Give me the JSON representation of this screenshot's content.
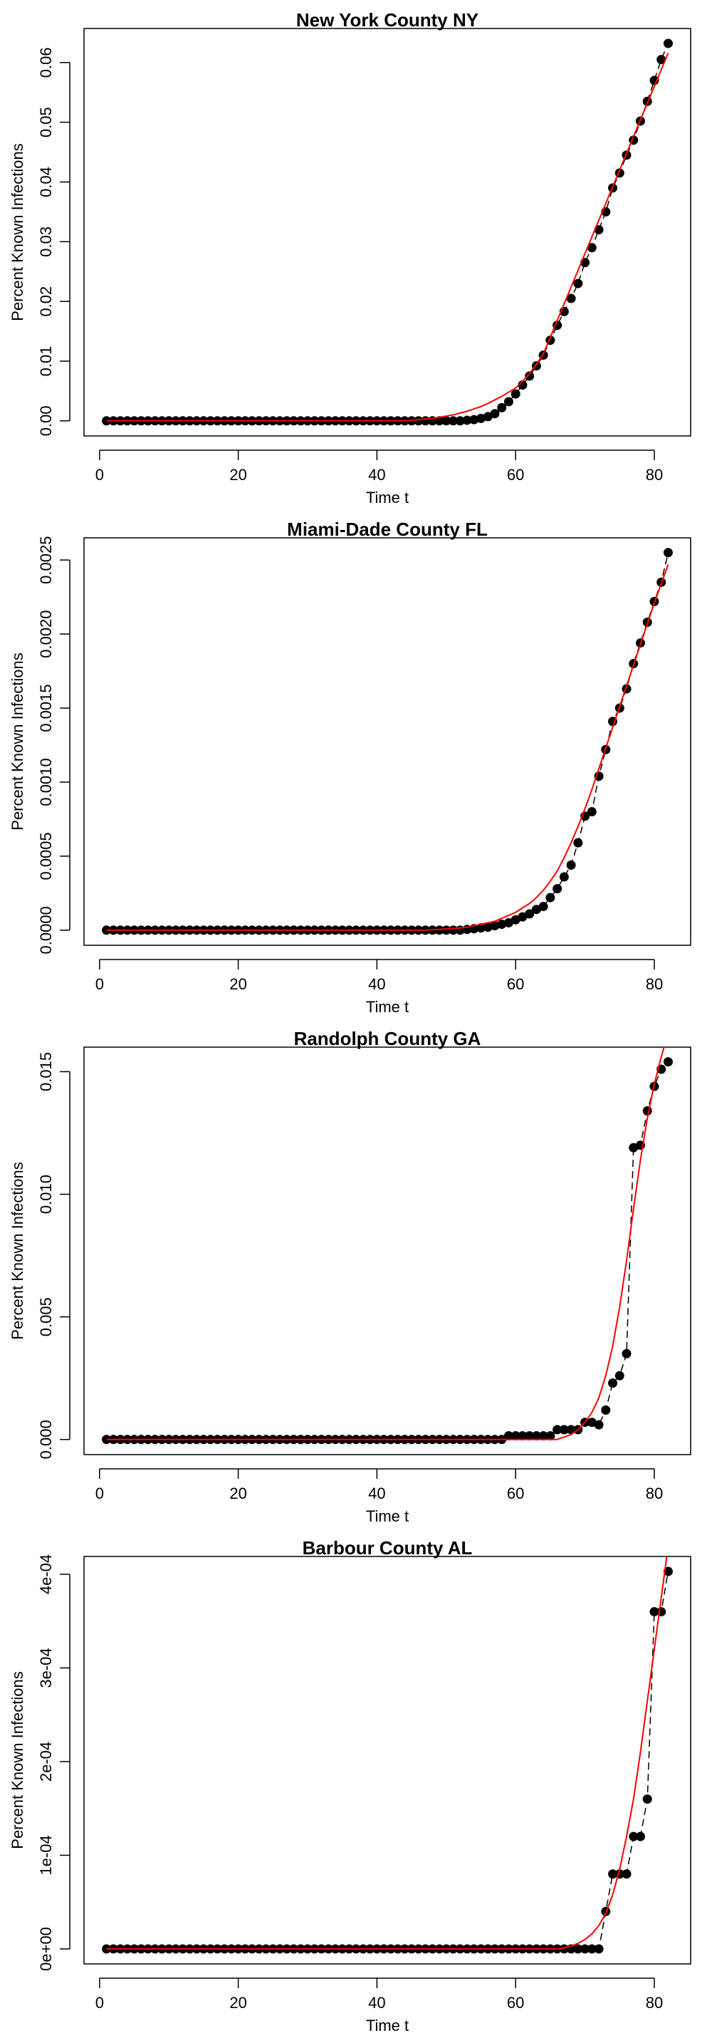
{
  "chart_data": [
    {
      "type": "line",
      "title": "New York County NY",
      "x_label": "Time t",
      "y_label": "Percent Known Infections",
      "x": [
        1,
        2,
        3,
        4,
        5,
        6,
        7,
        8,
        9,
        10,
        11,
        12,
        13,
        14,
        15,
        16,
        17,
        18,
        19,
        20,
        21,
        22,
        23,
        24,
        25,
        26,
        27,
        28,
        29,
        30,
        31,
        32,
        33,
        34,
        35,
        36,
        37,
        38,
        39,
        40,
        41,
        42,
        43,
        44,
        45,
        46,
        47,
        48,
        49,
        50,
        51,
        52,
        53,
        54,
        55,
        56,
        57,
        58,
        59,
        60,
        61,
        62,
        63,
        64,
        65,
        66,
        67,
        68,
        69,
        70,
        71,
        72,
        73,
        74,
        75,
        76,
        77,
        78,
        79,
        80,
        81,
        82
      ],
      "series": [
        {
          "color": "#000000",
          "marker": "point",
          "values": [
            0,
            0,
            0,
            0,
            0,
            0,
            0,
            0,
            0,
            0,
            0,
            0,
            0,
            0,
            0,
            0,
            0,
            0,
            0,
            0,
            0,
            0,
            0,
            0,
            0,
            0,
            0,
            0,
            0,
            0,
            0,
            0,
            0,
            0,
            0,
            0,
            0,
            0,
            0,
            0,
            0,
            0,
            0,
            0,
            0,
            0,
            0,
            0,
            0,
            0,
            0,
            0,
            0.0001,
            0.0002,
            0.0004,
            0.0007,
            0.0012,
            0.0022,
            0.0032,
            0.0045,
            0.006,
            0.0075,
            0.0092,
            0.011,
            0.0135,
            0.016,
            0.0183,
            0.0205,
            0.023,
            0.0265,
            0.029,
            0.032,
            0.035,
            0.039,
            0.0415,
            0.0445,
            0.047,
            0.0502,
            0.0535,
            0.057,
            0.0605,
            0.0632
          ]
        },
        {
          "color": "#ff0000",
          "marker": "line",
          "values": [
            0,
            0,
            0,
            0,
            0,
            0,
            0,
            0,
            0,
            0,
            0,
            0,
            0,
            0,
            0,
            0,
            0,
            0,
            0,
            0,
            0,
            0,
            0,
            0,
            0,
            0,
            0,
            0,
            0,
            0,
            0,
            0,
            0,
            0,
            0,
            0,
            0,
            0,
            0,
            0,
            0,
            0,
            0,
            0,
            0.0001,
            0.0002,
            0.0003,
            0.0004,
            0.0006,
            0.0008,
            0.001,
            0.0013,
            0.0016,
            0.002,
            0.0024,
            0.0029,
            0.0035,
            0.0041,
            0.0048,
            0.0055,
            0.0066,
            0.0079,
            0.0095,
            0.0112,
            0.014,
            0.0168,
            0.0196,
            0.0224,
            0.0252,
            0.028,
            0.0308,
            0.0336,
            0.0364,
            0.0392,
            0.042,
            0.0448,
            0.0476,
            0.0504,
            0.0532,
            0.056,
            0.0588,
            0.0616
          ]
        }
      ],
      "xlim": [
        -2.24,
        85.24
      ],
      "xticks": [
        0,
        20,
        40,
        60,
        80
      ],
      "ylim": [
        -0.00253,
        0.0657
      ],
      "yticks": [
        {
          "value": 0,
          "label": "0.00"
        },
        {
          "value": 0.01,
          "label": "0.01"
        },
        {
          "value": 0.02,
          "label": "0.02"
        },
        {
          "value": 0.03,
          "label": "0.03"
        },
        {
          "value": 0.04,
          "label": "0.04"
        },
        {
          "value": 0.05,
          "label": "0.05"
        },
        {
          "value": 0.06,
          "label": "0.06"
        }
      ]
    },
    {
      "type": "line",
      "title": "Miami-Dade County FL",
      "x_label": "Time t",
      "y_label": "Percent Known Infections",
      "x": [
        1,
        2,
        3,
        4,
        5,
        6,
        7,
        8,
        9,
        10,
        11,
        12,
        13,
        14,
        15,
        16,
        17,
        18,
        19,
        20,
        21,
        22,
        23,
        24,
        25,
        26,
        27,
        28,
        29,
        30,
        31,
        32,
        33,
        34,
        35,
        36,
        37,
        38,
        39,
        40,
        41,
        42,
        43,
        44,
        45,
        46,
        47,
        48,
        49,
        50,
        51,
        52,
        53,
        54,
        55,
        56,
        57,
        58,
        59,
        60,
        61,
        62,
        63,
        64,
        65,
        66,
        67,
        68,
        69,
        70,
        71,
        72,
        73,
        74,
        75,
        76,
        77,
        78,
        79,
        80,
        81,
        82
      ],
      "series": [
        {
          "color": "#000000",
          "marker": "point",
          "values": [
            0,
            0,
            0,
            0,
            0,
            0,
            0,
            0,
            0,
            0,
            0,
            0,
            0,
            0,
            0,
            0,
            0,
            0,
            0,
            0,
            0,
            0,
            0,
            0,
            0,
            0,
            0,
            0,
            0,
            0,
            0,
            0,
            0,
            0,
            0,
            0,
            0,
            0,
            0,
            0,
            0,
            0,
            0,
            0,
            0,
            0,
            0,
            0,
            0,
            0,
            0,
            0,
            5e-06,
            1e-05,
            1.5e-05,
            2e-05,
            3e-05,
            4e-05,
            5e-05,
            7e-05,
            9e-05,
            0.00011,
            0.00014,
            0.00016,
            0.00022,
            0.00028,
            0.00036,
            0.00044,
            0.00059,
            0.00077,
            0.0008,
            0.00104,
            0.00122,
            0.00141,
            0.0015,
            0.00163,
            0.0018,
            0.00194,
            0.00208,
            0.00222,
            0.00235,
            0.00255
          ]
        },
        {
          "color": "#ff0000",
          "marker": "line",
          "values": [
            0,
            0,
            0,
            0,
            0,
            0,
            0,
            0,
            0,
            0,
            0,
            0,
            0,
            0,
            0,
            0,
            0,
            0,
            0,
            0,
            0,
            0,
            0,
            0,
            0,
            0,
            0,
            0,
            0,
            0,
            0,
            0,
            0,
            0,
            0,
            0,
            0,
            0,
            0,
            0,
            0,
            0,
            0,
            0,
            0,
            0,
            0,
            3e-06,
            5e-06,
            8e-06,
            1.1e-05,
            1.5e-05,
            2e-05,
            3e-05,
            4e-05,
            5e-05,
            6e-05,
            8e-05,
            0.0001,
            0.00012,
            0.00015,
            0.00018,
            0.00022,
            0.00027,
            0.00033,
            0.0004,
            0.00049,
            0.00059,
            0.0007,
            0.00082,
            0.00095,
            0.00109,
            0.00123,
            0.00137,
            0.00151,
            0.00165,
            0.00179,
            0.00193,
            0.00207,
            0.00221,
            0.00234,
            0.00247
          ]
        }
      ],
      "xlim": [
        -2.24,
        85.24
      ],
      "xticks": [
        0,
        20,
        40,
        60,
        80
      ],
      "ylim": [
        -0.000102,
        0.00265
      ],
      "yticks": [
        {
          "value": 0,
          "label": "0.0000"
        },
        {
          "value": 0.0005,
          "label": "0.0005"
        },
        {
          "value": 0.001,
          "label": "0.0010"
        },
        {
          "value": 0.0015,
          "label": "0.0015"
        },
        {
          "value": 0.002,
          "label": "0.0020"
        },
        {
          "value": 0.0025,
          "label": "0.0025"
        }
      ]
    },
    {
      "type": "line",
      "title": "Randolph County GA",
      "x_label": "Time t",
      "y_label": "Percent Known Infections",
      "x": [
        1,
        2,
        3,
        4,
        5,
        6,
        7,
        8,
        9,
        10,
        11,
        12,
        13,
        14,
        15,
        16,
        17,
        18,
        19,
        20,
        21,
        22,
        23,
        24,
        25,
        26,
        27,
        28,
        29,
        30,
        31,
        32,
        33,
        34,
        35,
        36,
        37,
        38,
        39,
        40,
        41,
        42,
        43,
        44,
        45,
        46,
        47,
        48,
        49,
        50,
        51,
        52,
        53,
        54,
        55,
        56,
        57,
        58,
        59,
        60,
        61,
        62,
        63,
        64,
        65,
        66,
        67,
        68,
        69,
        70,
        71,
        72,
        73,
        74,
        75,
        76,
        77,
        78,
        79,
        80,
        81,
        82
      ],
      "series": [
        {
          "color": "#000000",
          "marker": "point",
          "values": [
            0,
            0,
            0,
            0,
            0,
            0,
            0,
            0,
            0,
            0,
            0,
            0,
            0,
            0,
            0,
            0,
            0,
            0,
            0,
            0,
            0,
            0,
            0,
            0,
            0,
            0,
            0,
            0,
            0,
            0,
            0,
            0,
            0,
            0,
            0,
            0,
            0,
            0,
            0,
            0,
            0,
            0,
            0,
            0,
            0,
            0,
            0,
            0,
            0,
            0,
            0,
            0,
            0,
            0,
            0,
            0,
            0,
            0,
            0.00015,
            0.00015,
            0.00015,
            0.00015,
            0.00015,
            0.00015,
            0.00015,
            0.0004,
            0.0004,
            0.0004,
            0.0004,
            0.0007,
            0.0007,
            0.0006,
            0.0012,
            0.0023,
            0.0026,
            0.0035,
            0.0119,
            0.012,
            0.0134,
            0.0144,
            0.0151,
            0.0154
          ]
        },
        {
          "color": "#ff0000",
          "marker": "line",
          "values": [
            0,
            0,
            0,
            0,
            0,
            0,
            0,
            0,
            0,
            0,
            0,
            0,
            0,
            0,
            0,
            0,
            0,
            0,
            0,
            0,
            0,
            0,
            0,
            0,
            0,
            0,
            0,
            0,
            0,
            0,
            0,
            0,
            0,
            0,
            0,
            0,
            0,
            0,
            0,
            0,
            0,
            0,
            0,
            0,
            0,
            0,
            0,
            0,
            0,
            0,
            0,
            0,
            0,
            0,
            0,
            0,
            0,
            0,
            0,
            0,
            0,
            0,
            0,
            0,
            0,
            0,
            0.0001,
            0.0002,
            0.0004,
            0.0007,
            0.0011,
            0.0017,
            0.0026,
            0.0038,
            0.0054,
            0.0073,
            0.0094,
            0.0114,
            0.0131,
            0.0145,
            0.0156,
            0.0166
          ]
        }
      ],
      "xlim": [
        -2.24,
        85.24
      ],
      "xticks": [
        0,
        20,
        40,
        60,
        80
      ],
      "ylim": [
        -0.000616,
        0.016
      ],
      "yticks": [
        {
          "value": 0,
          "label": "0.000"
        },
        {
          "value": 0.005,
          "label": "0.005"
        },
        {
          "value": 0.01,
          "label": "0.010"
        },
        {
          "value": 0.015,
          "label": "0.015"
        }
      ]
    },
    {
      "type": "line",
      "title": "Barbour County AL",
      "x_label": "Time t",
      "y_label": "Percent Known Infections",
      "x": [
        1,
        2,
        3,
        4,
        5,
        6,
        7,
        8,
        9,
        10,
        11,
        12,
        13,
        14,
        15,
        16,
        17,
        18,
        19,
        20,
        21,
        22,
        23,
        24,
        25,
        26,
        27,
        28,
        29,
        30,
        31,
        32,
        33,
        34,
        35,
        36,
        37,
        38,
        39,
        40,
        41,
        42,
        43,
        44,
        45,
        46,
        47,
        48,
        49,
        50,
        51,
        52,
        53,
        54,
        55,
        56,
        57,
        58,
        59,
        60,
        61,
        62,
        63,
        64,
        65,
        66,
        67,
        68,
        69,
        70,
        71,
        72,
        73,
        74,
        75,
        76,
        77,
        78,
        79,
        80,
        81,
        82
      ],
      "series": [
        {
          "color": "#000000",
          "marker": "point",
          "values": [
            0,
            0,
            0,
            0,
            0,
            0,
            0,
            0,
            0,
            0,
            0,
            0,
            0,
            0,
            0,
            0,
            0,
            0,
            0,
            0,
            0,
            0,
            0,
            0,
            0,
            0,
            0,
            0,
            0,
            0,
            0,
            0,
            0,
            0,
            0,
            0,
            0,
            0,
            0,
            0,
            0,
            0,
            0,
            0,
            0,
            0,
            0,
            0,
            0,
            0,
            0,
            0,
            0,
            0,
            0,
            0,
            0,
            0,
            0,
            0,
            0,
            0,
            0,
            0,
            0,
            0,
            0,
            0,
            0,
            0,
            0,
            0,
            4e-05,
            8e-05,
            8e-05,
            8e-05,
            0.00012,
            0.00012,
            0.00016,
            0.00036,
            0.00036,
            0.000403
          ]
        },
        {
          "color": "#ff0000",
          "marker": "line",
          "values": [
            0,
            0,
            0,
            0,
            0,
            0,
            0,
            0,
            0,
            0,
            0,
            0,
            0,
            0,
            0,
            0,
            0,
            0,
            0,
            0,
            0,
            0,
            0,
            0,
            0,
            0,
            0,
            0,
            0,
            0,
            0,
            0,
            0,
            0,
            0,
            0,
            0,
            0,
            0,
            0,
            0,
            0,
            0,
            0,
            0,
            0,
            0,
            0,
            0,
            0,
            0,
            0,
            0,
            0,
            0,
            0,
            0,
            0,
            0,
            0,
            0,
            0,
            0,
            0,
            0,
            0,
            1e-06,
            3e-06,
            6e-06,
            1e-05,
            1.6e-05,
            2.5e-05,
            3.8e-05,
            5.8e-05,
            8.5e-05,
            0.00012,
            0.00016,
            0.00021,
            0.000265,
            0.00032,
            0.000375,
            0.00043
          ]
        }
      ],
      "xlim": [
        -2.24,
        85.24
      ],
      "xticks": [
        0,
        20,
        40,
        60,
        80
      ],
      "ylim": [
        -1.6e-05,
        0.000419
      ],
      "yticks": [
        {
          "value": 0,
          "label": "0e+00"
        },
        {
          "value": 0.0001,
          "label": "1e-04"
        },
        {
          "value": 0.0002,
          "label": "2e-04"
        },
        {
          "value": 0.0003,
          "label": "3e-04"
        },
        {
          "value": 0.0004,
          "label": "4e-04"
        }
      ]
    }
  ]
}
